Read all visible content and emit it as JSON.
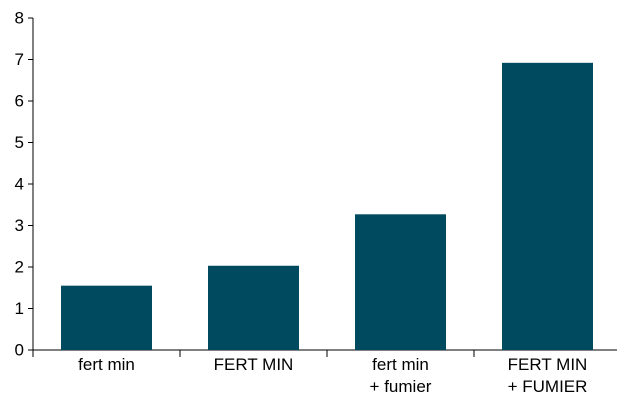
{
  "chart_data": {
    "type": "bar",
    "categories": [
      [
        "fert min"
      ],
      [
        "FERT MIN"
      ],
      [
        "fert min",
        "+ fumier"
      ],
      [
        "FERT MIN",
        "+ FUMIER"
      ]
    ],
    "values": [
      1.55,
      2.03,
      3.27,
      6.92
    ],
    "ylim": [
      0,
      8
    ],
    "yticks": [
      "0",
      "1",
      "2",
      "3",
      "4",
      "5",
      "6",
      "7",
      "8"
    ],
    "title": "",
    "xlabel": "",
    "ylabel": "",
    "grid": false,
    "legend": "none",
    "colors": {
      "bar": "#004A5F",
      "axis": "#000000"
    }
  }
}
